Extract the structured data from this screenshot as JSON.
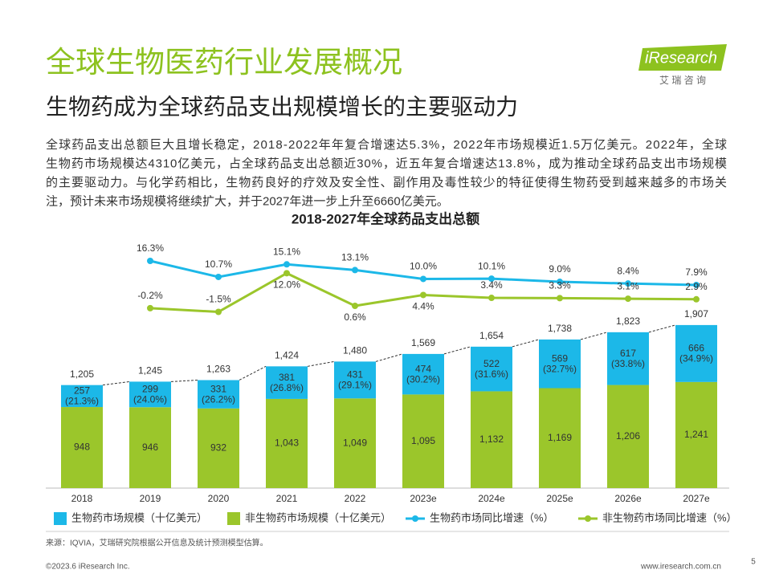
{
  "header": {
    "title": "全球生物医药行业发展概况",
    "subtitle": "生物药成为全球药品支出规模增长的主要驱动力",
    "logo": "iResearch",
    "logo_sub": "艾 瑞 咨 询"
  },
  "paragraph": [
    "全球药品支出总额巨大且增长稳定，2018-2022年年复合增速达5.3%，2022年市场规模近1.5万亿美元。2022年，全球",
    "生物药市场规模达4310亿美元，占全球药品支出总额近30%，近五年复合增速达13.8%，成为推动全球药品支出市场规模",
    "的主要驱动力。与化学药相比，生物药良好的疗效及安全性、副作用及毒性较少的特征使得生物药受到越来越多的市场关",
    "注，预计未来市场规模将继续扩大，并于2027年进一步上升至6660亿美元。"
  ],
  "chart_data": {
    "type": "bar",
    "title": "2018-2027年全球药品支出总额",
    "categories": [
      "2018",
      "2019",
      "2020",
      "2021",
      "2022",
      "2023e",
      "2024e",
      "2025e",
      "2026e",
      "2027e"
    ],
    "series": [
      {
        "name": "生物药市场规模（十亿美元）",
        "color": "#1cb8e8",
        "values": [
          257,
          299,
          331,
          381,
          431,
          474,
          522,
          569,
          617,
          666
        ]
      },
      {
        "name": "非生物药市场规模（十亿美元）",
        "color": "#9bc62b",
        "values": [
          948,
          946,
          932,
          1043,
          1049,
          1095,
          1132,
          1169,
          1206,
          1241
        ],
        "value_labels": [
          "948",
          "946",
          "932",
          "1,043",
          "1,049",
          "1,095",
          "1,132",
          "1,169",
          "1,206",
          "1,241"
        ]
      },
      {
        "name": "生物药市场同比增速（%）",
        "type": "line",
        "color": "#1cb8e8",
        "values": [
          null,
          16.3,
          10.7,
          15.1,
          13.1,
          10.0,
          10.1,
          9.0,
          8.4,
          7.9
        ],
        "value_labels": [
          null,
          "16.3%",
          "10.7%",
          "15.1%",
          "13.1%",
          "10.0%",
          "10.1%",
          "9.0%",
          "8.4%",
          "7.9%"
        ]
      },
      {
        "name": "非生物药市场同比增速（%）",
        "type": "line",
        "color": "#9bc62b",
        "values": [
          null,
          -0.2,
          -1.5,
          12.0,
          0.6,
          4.4,
          3.4,
          3.3,
          3.1,
          2.9
        ],
        "value_labels": [
          null,
          "-0.2%",
          "-1.5%",
          "12.0%",
          "0.6%",
          "4.4%",
          "3.4%",
          "3.3%",
          "3.1%",
          "2.9%"
        ]
      }
    ],
    "shares": {
      "values": [
        21.3,
        24.0,
        26.2,
        26.8,
        29.1,
        30.2,
        31.6,
        32.7,
        33.8,
        34.9
      ],
      "value_labels": [
        "(21.3%)",
        "(24.0%)",
        "(26.2%)",
        "(26.8%)",
        "(29.1%)",
        "(30.2%)",
        "(31.6%)",
        "(32.7%)",
        "(33.8%)",
        "(34.9%)"
      ]
    },
    "totals": {
      "values": [
        1205,
        1245,
        1263,
        1424,
        1480,
        1569,
        1654,
        1738,
        1823,
        1907
      ],
      "value_labels": [
        "1,205",
        "1,245",
        "1,263",
        "1,424",
        "1,480",
        "1,569",
        "1,654",
        "1,738",
        "1,823",
        "1,907"
      ]
    }
  },
  "footer": {
    "source": "来源：IQVIA，艾瑞研究院根据公开信息及统计预测模型估算。",
    "copyright": "©2023.6 iResearch Inc.",
    "url": "www.iresearch.com.cn",
    "page": "5"
  }
}
